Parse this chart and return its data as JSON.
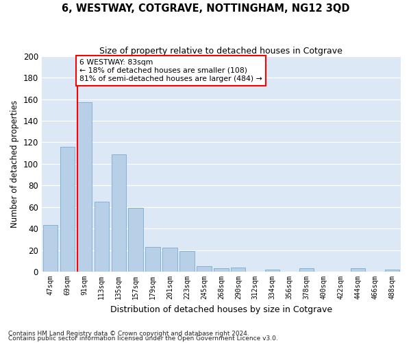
{
  "title": "6, WESTWAY, COTGRAVE, NOTTINGHAM, NG12 3QD",
  "subtitle": "Size of property relative to detached houses in Cotgrave",
  "xlabel": "Distribution of detached houses by size in Cotgrave",
  "ylabel": "Number of detached properties",
  "categories": [
    "47sqm",
    "69sqm",
    "91sqm",
    "113sqm",
    "135sqm",
    "157sqm",
    "179sqm",
    "201sqm",
    "223sqm",
    "245sqm",
    "268sqm",
    "290sqm",
    "312sqm",
    "334sqm",
    "356sqm",
    "378sqm",
    "400sqm",
    "422sqm",
    "444sqm",
    "466sqm",
    "488sqm"
  ],
  "values": [
    43,
    116,
    157,
    65,
    109,
    59,
    23,
    22,
    19,
    5,
    3,
    4,
    0,
    2,
    0,
    3,
    0,
    0,
    3,
    0,
    2
  ],
  "bar_color": "#b8cfe8",
  "bar_edge_color": "#7aaad0",
  "vline_x_index": 2,
  "vline_color": "red",
  "annotation_text": "6 WESTWAY: 83sqm\n← 18% of detached houses are smaller (108)\n81% of semi-detached houses are larger (484) →",
  "annotation_box_color": "white",
  "annotation_box_edge": "red",
  "ylim": [
    0,
    200
  ],
  "yticks": [
    0,
    20,
    40,
    60,
    80,
    100,
    120,
    140,
    160,
    180,
    200
  ],
  "bg_color": "#dce8f5",
  "footer1": "Contains HM Land Registry data © Crown copyright and database right 2024.",
  "footer2": "Contains public sector information licensed under the Open Government Licence v3.0."
}
